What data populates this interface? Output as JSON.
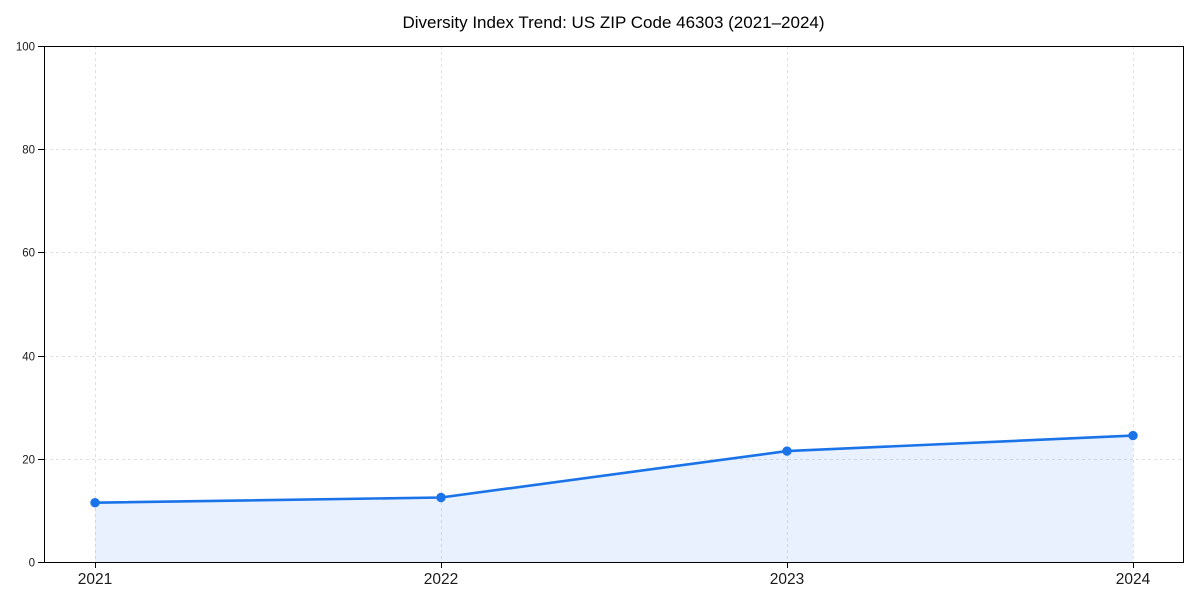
{
  "chart_data": {
    "type": "area",
    "title": "Diversity Index Trend: US ZIP Code 46303 (2021–2024)",
    "x": [
      "2021",
      "2022",
      "2023",
      "2024"
    ],
    "series": [
      {
        "name": "Diversity Index",
        "values": [
          11.5,
          12.5,
          21.5,
          24.5
        ]
      }
    ],
    "xlabel": "",
    "ylabel": "",
    "ylim": [
      0,
      100
    ],
    "yticks": [
      0,
      20,
      40,
      60,
      80,
      100
    ],
    "grid": true,
    "grid_style": "dashed",
    "legend": "none",
    "marker": "circle",
    "colors": {
      "line": "#1a73e8",
      "marker": "#1a73e8",
      "fill": "#1a73e8",
      "fill_opacity": 0.1,
      "grid": "#e0e0e0",
      "axis": "#000000",
      "tick_label": "#1a1a1a",
      "background": "#ffffff"
    }
  }
}
